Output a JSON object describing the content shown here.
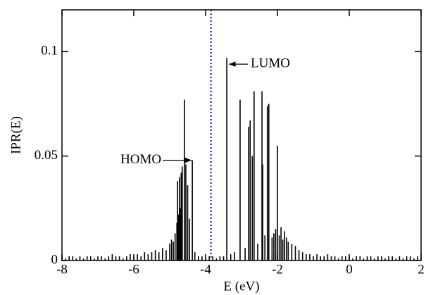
{
  "chart_data": {
    "type": "stem",
    "x_label": "E (eV)",
    "y_label": "IPR(E)",
    "color": "#000000",
    "xlim": [
      -8,
      2
    ],
    "ylim": [
      0,
      0.12
    ],
    "xticks": [
      -8,
      -6,
      -4,
      -2,
      0,
      2
    ],
    "yticks": [
      0,
      0.05,
      0.1
    ],
    "x": [
      -8,
      -7.9,
      -7.8,
      -7.7,
      -7.6,
      -7.5,
      -7.4,
      -7.3,
      -7.2,
      -7.1,
      -7,
      -6.9,
      -6.8,
      -6.7,
      -6.6,
      -6.5,
      -6.4,
      -6.3,
      -6.2,
      -6.1,
      -6,
      -5.9,
      -5.8,
      -5.7,
      -5.6,
      -5.5,
      -5.4,
      -5.3,
      -5.2,
      -5.1,
      -5,
      -4.95,
      -4.9,
      -4.85,
      -4.8,
      -4.78,
      -4.75,
      -4.73,
      -4.7,
      -4.68,
      -4.65,
      -4.59,
      -4.55,
      -4.5,
      -4.45,
      -4.37,
      -4.3,
      -4.2,
      -4.1,
      -4,
      -3.9,
      -3.8,
      -3.7,
      -3.6,
      -3.5,
      -3.41,
      -3.3,
      -3.2,
      -3.04,
      -2.9,
      -2.8,
      -2.76,
      -2.7,
      -2.65,
      -2.55,
      -2.43,
      -2.41,
      -2.35,
      -2.28,
      -2.24,
      -2.15,
      -2.1,
      -2.05,
      -2,
      -1.95,
      -1.9,
      -1.85,
      -1.8,
      -1.75,
      -1.7,
      -1.6,
      -1.5,
      -1.4,
      -1.3,
      -1.2,
      -1.1,
      -1,
      -0.9,
      -0.8,
      -0.7,
      -0.6,
      -0.5,
      -0.4,
      -0.3,
      -0.2,
      -0.1,
      0,
      0.1,
      0.2,
      0.3,
      0.4,
      0.5,
      0.6,
      0.7,
      0.8,
      0.9,
      1,
      1.1,
      1.2,
      1.3,
      1.4,
      1.5,
      1.6,
      1.7,
      1.8,
      1.9,
      2
    ],
    "values": [
      0.002,
      0.001,
      0.002,
      0.002,
      0.001,
      0.002,
      0.001,
      0.002,
      0.002,
      0.001,
      0.002,
      0.002,
      0.001,
      0.002,
      0.003,
      0.002,
      0.002,
      0.001,
      0.002,
      0.003,
      0.002,
      0.003,
      0.002,
      0.004,
      0.003,
      0.004,
      0.005,
      0.004,
      0.006,
      0.005,
      0.008,
      0.01,
      0.009,
      0.013,
      0.018,
      0.038,
      0.022,
      0.04,
      0.025,
      0.042,
      0.045,
      0.077,
      0.046,
      0.036,
      0.02,
      0.048,
      0.004,
      0.002,
      0.002,
      0.001,
      0.002,
      0.002,
      0.001,
      0.002,
      0.002,
      0.097,
      0.003,
      0.004,
      0.077,
      0.006,
      0.064,
      0.067,
      0.05,
      0.081,
      0.008,
      0.081,
      0.046,
      0.012,
      0.074,
      0.075,
      0.011,
      0.013,
      0.015,
      0.055,
      0.012,
      0.016,
      0.01,
      0.014,
      0.011,
      0.009,
      0.008,
      0.007,
      0.005,
      0.004,
      0.003,
      0.003,
      0.002,
      0.003,
      0.002,
      0.002,
      0.003,
      0.002,
      0.002,
      0.001,
      0.002,
      0.002,
      0.002,
      0.001,
      0.002,
      0.002,
      0.001,
      0.002,
      0.002,
      0.001,
      0.002,
      0.002,
      0.001,
      0.002,
      0.002,
      0.001,
      0.002,
      0.001,
      0.002,
      0.002,
      0.001,
      0.002,
      0.001
    ],
    "vline": {
      "x": -3.85,
      "color": "#0000cc"
    },
    "annotations": [
      {
        "text": "HOMO",
        "x": -4.37,
        "y": 0.048,
        "side": "left"
      },
      {
        "text": "LUMO",
        "x": -3.41,
        "y": 0.094,
        "side": "right"
      }
    ]
  }
}
